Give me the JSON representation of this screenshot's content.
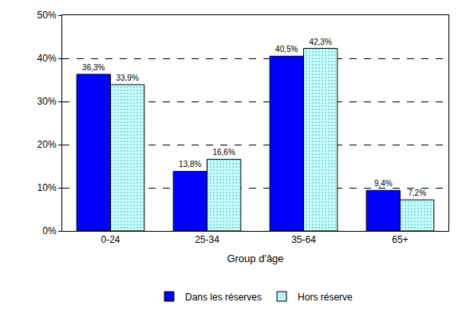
{
  "chart_data": {
    "type": "bar",
    "x_label": "Group d'âge",
    "categories": [
      "0-24",
      "25-34",
      "35-64",
      "65+"
    ],
    "series": [
      {
        "name": "Dans les réserves",
        "color": "#0000ff",
        "values": [
          36.3,
          13.8,
          40.5,
          9.4
        ],
        "value_labels": [
          "36,3%",
          "13,8%",
          "40,5%",
          "9,4%"
        ]
      },
      {
        "name": "Hors réserve",
        "color": "#ccffff",
        "values": [
          33.9,
          16.6,
          42.3,
          7.2
        ],
        "value_labels": [
          "33,9%",
          "16,6%",
          "42,3%",
          "7,2%"
        ]
      }
    ],
    "ylim": [
      0,
      50
    ],
    "yticks": [
      {
        "value": 0,
        "label": "0%"
      },
      {
        "value": 10,
        "label": "10%"
      },
      {
        "value": 20,
        "label": "20%"
      },
      {
        "value": 30,
        "label": "30%"
      },
      {
        "value": 40,
        "label": "40%"
      },
      {
        "value": 50,
        "label": "50%"
      }
    ],
    "grid": true,
    "legend": "bottom",
    "data_labels": true
  }
}
